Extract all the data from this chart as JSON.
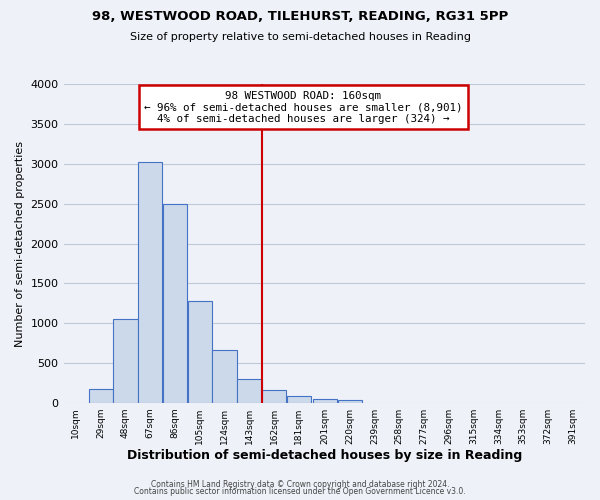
{
  "title_main": "98, WESTWOOD ROAD, TILEHURST, READING, RG31 5PP",
  "title_sub": "Size of property relative to semi-detached houses in Reading",
  "xlabel": "Distribution of semi-detached houses by size in Reading",
  "ylabel": "Number of semi-detached properties",
  "bin_labels": [
    "10sqm",
    "29sqm",
    "48sqm",
    "67sqm",
    "86sqm",
    "105sqm",
    "124sqm",
    "143sqm",
    "162sqm",
    "181sqm",
    "201sqm",
    "220sqm",
    "239sqm",
    "258sqm",
    "277sqm",
    "296sqm",
    "315sqm",
    "334sqm",
    "353sqm",
    "372sqm",
    "391sqm"
  ],
  "bin_edges": [
    10,
    29,
    48,
    67,
    86,
    105,
    124,
    143,
    162,
    181,
    201,
    220,
    239,
    258,
    277,
    296,
    315,
    334,
    353,
    372,
    391,
    410
  ],
  "bar_heights": [
    0,
    175,
    1050,
    3025,
    2500,
    1280,
    660,
    300,
    155,
    90,
    50,
    30,
    0,
    0,
    0,
    0,
    0,
    0,
    0,
    0,
    0
  ],
  "bar_fill": "#ccd9ea",
  "bar_edge": "#4472c4",
  "property_line_x": 162,
  "property_line_color": "#cc0000",
  "annotation_title": "98 WESTWOOD ROAD: 160sqm",
  "annotation_line1": "← 96% of semi-detached houses are smaller (8,901)",
  "annotation_line2": "4% of semi-detached houses are larger (324) →",
  "annotation_box_edge": "#cc0000",
  "ylim": [
    0,
    4000
  ],
  "yticks": [
    0,
    500,
    1000,
    1500,
    2000,
    2500,
    3000,
    3500,
    4000
  ],
  "grid_color": "#c0c8d8",
  "bg_color": "#eef2f8",
  "footer1": "Contains HM Land Registry data © Crown copyright and database right 2024.",
  "footer2": "Contains public sector information licensed under the Open Government Licence v3.0."
}
